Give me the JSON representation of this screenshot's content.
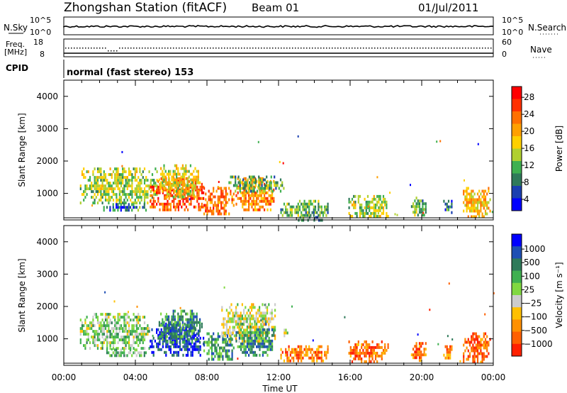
{
  "header": {
    "station": "Zhongshan Station (fitACF)",
    "beam": "Beam 01",
    "date": "01/Jul/2011"
  },
  "top_panels": {
    "nsky_label": "N.Sky",
    "nsky_ticks": [
      "10^5",
      "10^0"
    ],
    "nsearch_label": "N.Search",
    "nsearch_ticks": [
      "10^5",
      "10^0"
    ],
    "freq_label_1": "Freq.",
    "freq_label_2": "[MHz]",
    "freq_ticks": [
      "18",
      "8"
    ],
    "nave_label": "Nave",
    "nave_ticks": [
      "60",
      "0"
    ],
    "cpid_label": "CPID",
    "cpid_value": "normal (fast stereo) 153"
  },
  "chart_data": [
    {
      "type": "heatmap",
      "name": "power",
      "xlabel": "",
      "ylabel": "Slant Range [km]",
      "xlim": [
        0,
        24
      ],
      "ylim": [
        180,
        4500
      ],
      "x_ticks": [
        "00:00",
        "04:00",
        "08:00",
        "12:00",
        "16:00",
        "20:00",
        "00:00"
      ],
      "y_ticks": [
        "1000",
        "2000",
        "3000",
        "4000"
      ],
      "colorbar": {
        "label": "Power [dB]",
        "ticks": [
          "4",
          "8",
          "12",
          "16",
          "20",
          "24",
          "28"
        ],
        "colors": [
          "#0000ff",
          "#1a3fb0",
          "#2f7a5a",
          "#3fb050",
          "#b0d030",
          "#ffd000",
          "#ffa000",
          "#ff7000",
          "#ff3000",
          "#ff0000"
        ]
      },
      "blobs": [
        {
          "t0": 0.9,
          "t1": 5.2,
          "r0": 700,
          "r1": 1800,
          "level": 0.45
        },
        {
          "t0": 2.2,
          "t1": 4.6,
          "r0": 450,
          "r1": 700,
          "level": 0.25
        },
        {
          "t0": 4.8,
          "t1": 7.8,
          "r0": 500,
          "r1": 1500,
          "level": 0.8
        },
        {
          "t0": 5.3,
          "t1": 7.6,
          "r0": 900,
          "r1": 1900,
          "level": 0.5
        },
        {
          "t0": 7.8,
          "t1": 9.5,
          "r0": 350,
          "r1": 1200,
          "level": 0.75
        },
        {
          "t0": 9.6,
          "t1": 11.7,
          "r0": 450,
          "r1": 1500,
          "level": 0.7
        },
        {
          "t0": 9.2,
          "t1": 12.3,
          "r0": 1050,
          "r1": 1550,
          "level": 0.35
        },
        {
          "t0": 12.1,
          "t1": 14.8,
          "r0": 300,
          "r1": 800,
          "level": 0.35
        },
        {
          "t0": 13.0,
          "t1": 14.4,
          "r0": 200,
          "r1": 300,
          "level": 0.3
        },
        {
          "t0": 15.9,
          "t1": 18.1,
          "r0": 250,
          "r1": 950,
          "level": 0.45
        },
        {
          "t0": 19.4,
          "t1": 20.2,
          "r0": 300,
          "r1": 900,
          "level": 0.35
        },
        {
          "t0": 21.2,
          "t1": 21.7,
          "r0": 400,
          "r1": 800,
          "level": 0.25
        },
        {
          "t0": 22.3,
          "t1": 23.8,
          "r0": 250,
          "r1": 1200,
          "level": 0.6
        }
      ]
    },
    {
      "type": "heatmap",
      "name": "velocity",
      "xlabel": "Time UT",
      "ylabel": "Slant Range [km]",
      "xlim": [
        0,
        24
      ],
      "ylim": [
        180,
        4500
      ],
      "x_ticks": [
        "00:00",
        "04:00",
        "08:00",
        "12:00",
        "16:00",
        "20:00",
        "00:00"
      ],
      "y_ticks": [
        "1000",
        "2000",
        "3000",
        "4000"
      ],
      "colorbar": {
        "label": "Velocity [m s⁻¹]",
        "ticks": [
          "1000",
          "500",
          "100",
          "25",
          "−25",
          "−100",
          "−500",
          "−1000"
        ],
        "colors": [
          "#0000ff",
          "#1e4fb4",
          "#2f7a5a",
          "#3fb050",
          "#80d840",
          "#cccccc",
          "#ffc000",
          "#ff9000",
          "#ff6000",
          "#ff2000"
        ]
      },
      "blobs": [
        {
          "t0": 0.9,
          "t1": 4.8,
          "r0": 700,
          "r1": 1800,
          "level": 0.45
        },
        {
          "t0": 2.2,
          "t1": 4.6,
          "r0": 450,
          "r1": 700,
          "level": 0.42
        },
        {
          "t0": 4.8,
          "t1": 7.8,
          "r0": 500,
          "r1": 1500,
          "level": 0.12
        },
        {
          "t0": 5.3,
          "t1": 7.6,
          "r0": 900,
          "r1": 1900,
          "level": 0.3
        },
        {
          "t0": 7.8,
          "t1": 9.5,
          "r0": 350,
          "r1": 1200,
          "level": 0.3
        },
        {
          "t0": 8.8,
          "t1": 11.8,
          "r0": 900,
          "r1": 2100,
          "level": 0.55
        },
        {
          "t0": 9.6,
          "t1": 11.7,
          "r0": 450,
          "r1": 1500,
          "level": 0.28
        },
        {
          "t0": 12.1,
          "t1": 14.8,
          "r0": 300,
          "r1": 800,
          "level": 0.8
        },
        {
          "t0": 12.2,
          "t1": 12.5,
          "r0": 1100,
          "r1": 1400,
          "level": 0.55
        },
        {
          "t0": 15.9,
          "t1": 18.1,
          "r0": 250,
          "r1": 950,
          "level": 0.82
        },
        {
          "t0": 19.4,
          "t1": 20.2,
          "r0": 300,
          "r1": 900,
          "level": 0.82
        },
        {
          "t0": 21.2,
          "t1": 21.7,
          "r0": 400,
          "r1": 800,
          "level": 0.8
        },
        {
          "t0": 22.3,
          "t1": 23.8,
          "r0": 250,
          "r1": 1200,
          "level": 0.86
        }
      ]
    }
  ]
}
